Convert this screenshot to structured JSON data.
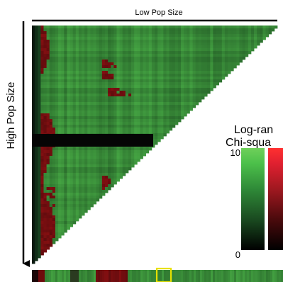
{
  "chart_data": {
    "type": "heatmap",
    "xlabel": "Low Pop Size",
    "ylabel": "High Pop Size",
    "legend": {
      "title_line1": "Log-ran",
      "title_line2": "Chi-squa",
      "max_label": "10",
      "min_label": "0",
      "range": [
        0,
        10
      ],
      "green_scale": [
        "#000000",
        "#1a4a20",
        "#2f8a38",
        "#4cc04a",
        "#6fd05a"
      ],
      "red_scale": [
        "#000000",
        "#4a0a0c",
        "#a01820",
        "#e02030",
        "#ff3030"
      ],
      "placement": "right"
    },
    "colors": {
      "background": "#ffffff",
      "highlight_box": "#e8e000",
      "significant": "#7a0a0c",
      "nonsignificant": "#3fae46"
    },
    "matrix": {
      "shape": "upper-left-triangle",
      "masked_row_band": "black",
      "significant_regions": [
        "left-edge columns",
        "lower-left block",
        "upper-middle arrow patterns"
      ]
    },
    "summary_strip": {
      "present": true,
      "highlighted_segment": true
    }
  }
}
